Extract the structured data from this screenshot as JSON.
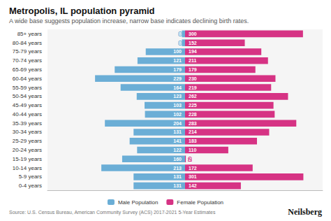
{
  "chart_data": {
    "type": "bar",
    "orientation": "horizontal",
    "title": "Metropolis, IL population pyramid",
    "subtitle": "A wide base suggests population increase, narrow base indicates declining birth rates.",
    "source": "Source: U.S. Census Bureau, American Community Survey (ACS) 2017-2021 5-Year Estimates",
    "branding": "Neilsberg",
    "categories": [
      "0-4 years",
      "5-9 years",
      "10-14 years",
      "15-19 years",
      "20-24 years",
      "25-29 years",
      "30-34 years",
      "35-39 years",
      "40-44 years",
      "45-49 years",
      "50-54 years",
      "55-59 years",
      "60-64 years",
      "65-69 years",
      "70-74 years",
      "75-79 years",
      "80-84 years",
      "85+ years"
    ],
    "series": [
      {
        "name": "Male Population",
        "color": "#6baed6",
        "values": [
          131,
          131,
          213,
          160,
          122,
          141,
          131,
          204,
          102,
          103,
          123,
          164,
          229,
          179,
          121,
          100,
          8,
          8
        ]
      },
      {
        "name": "Female Population",
        "color": "#d63384",
        "values": [
          142,
          301,
          172,
          2,
          110,
          183,
          214,
          283,
          228,
          225,
          262,
          219,
          230,
          179,
          211,
          194,
          152,
          300
        ]
      }
    ],
    "xlim": [
      0,
      350
    ],
    "data_labels": true,
    "grid": false,
    "legend": "bottom",
    "tick_labels": "y"
  }
}
